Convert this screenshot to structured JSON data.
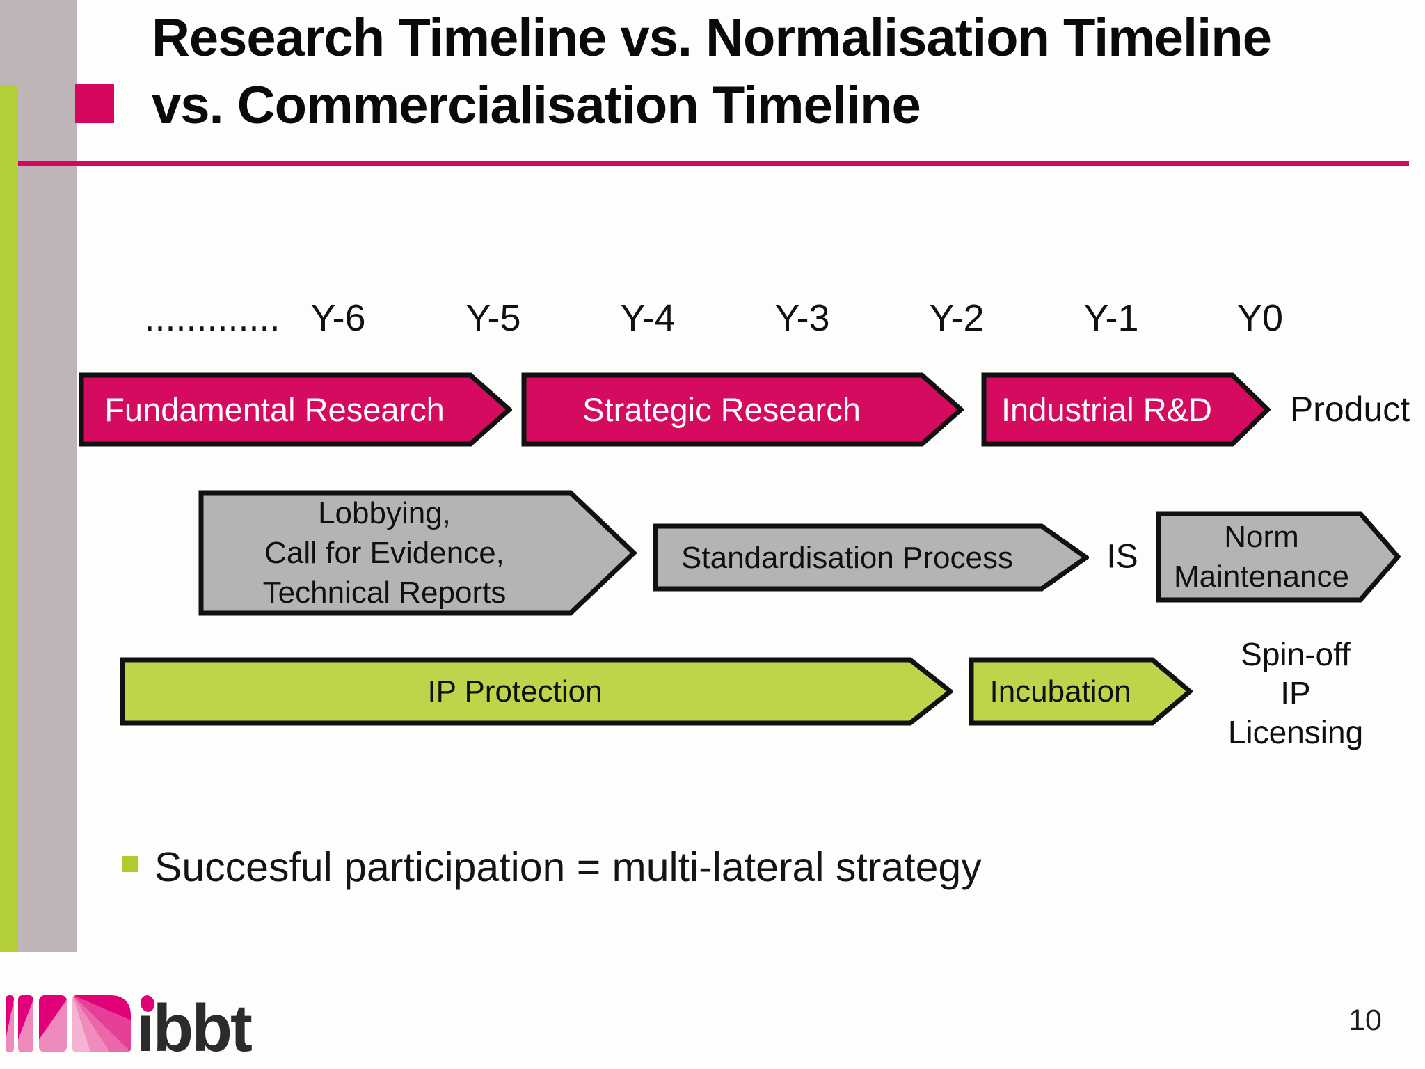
{
  "slide": {
    "title": {
      "line1": "Research Timeline vs. Normalisation Timeline",
      "line2": "vs. Commercialisation Timeline"
    },
    "page_number": "10",
    "bullet": {
      "text": "Succesful participation = multi-lateral strategy"
    },
    "logo": {
      "text": "ibbt"
    }
  },
  "timeline": {
    "labels": [
      ".............",
      "Y-6",
      "Y-5",
      "Y-4",
      "Y-3",
      "Y-2",
      "Y-1",
      "Y0"
    ]
  },
  "rows": {
    "research": {
      "arrows": {
        "fundamental": {
          "label": "Fundamental Research"
        },
        "strategic": {
          "label": "Strategic Research"
        },
        "industrial": {
          "label": "Industrial R&D"
        }
      },
      "outcome_label": "Product"
    },
    "normalisation": {
      "arrows": {
        "lobbying": {
          "label": "Lobbying,\nCall for Evidence,\nTechnical Reports"
        },
        "standardisation": {
          "label": "Standardisation Process"
        },
        "norm_maintenance": {
          "label": "Norm\nMaintenance"
        }
      },
      "milestone_label": "IS"
    },
    "commercialisation": {
      "arrows": {
        "ip_protection": {
          "label": "IP Protection"
        },
        "incubation": {
          "label": "Incubation"
        }
      },
      "outcome_label": "Spin-off\nIP Licensing"
    }
  },
  "colors": {
    "arrow_pink": "#d50b5f",
    "arrow_gray": "#b4b4b4",
    "arrow_green": "#bdd44b",
    "sidebar_gray": "#bfb5b8",
    "sidebar_green": "#b3cf37",
    "bullet_green": "#b2ca2e",
    "accent_pink": "#d5085f",
    "outline_black": "#111111",
    "logo_magenta": "#e2007a",
    "logo_pink_light": "#ec8abb",
    "logo_text_color": "#2b2b2b"
  }
}
